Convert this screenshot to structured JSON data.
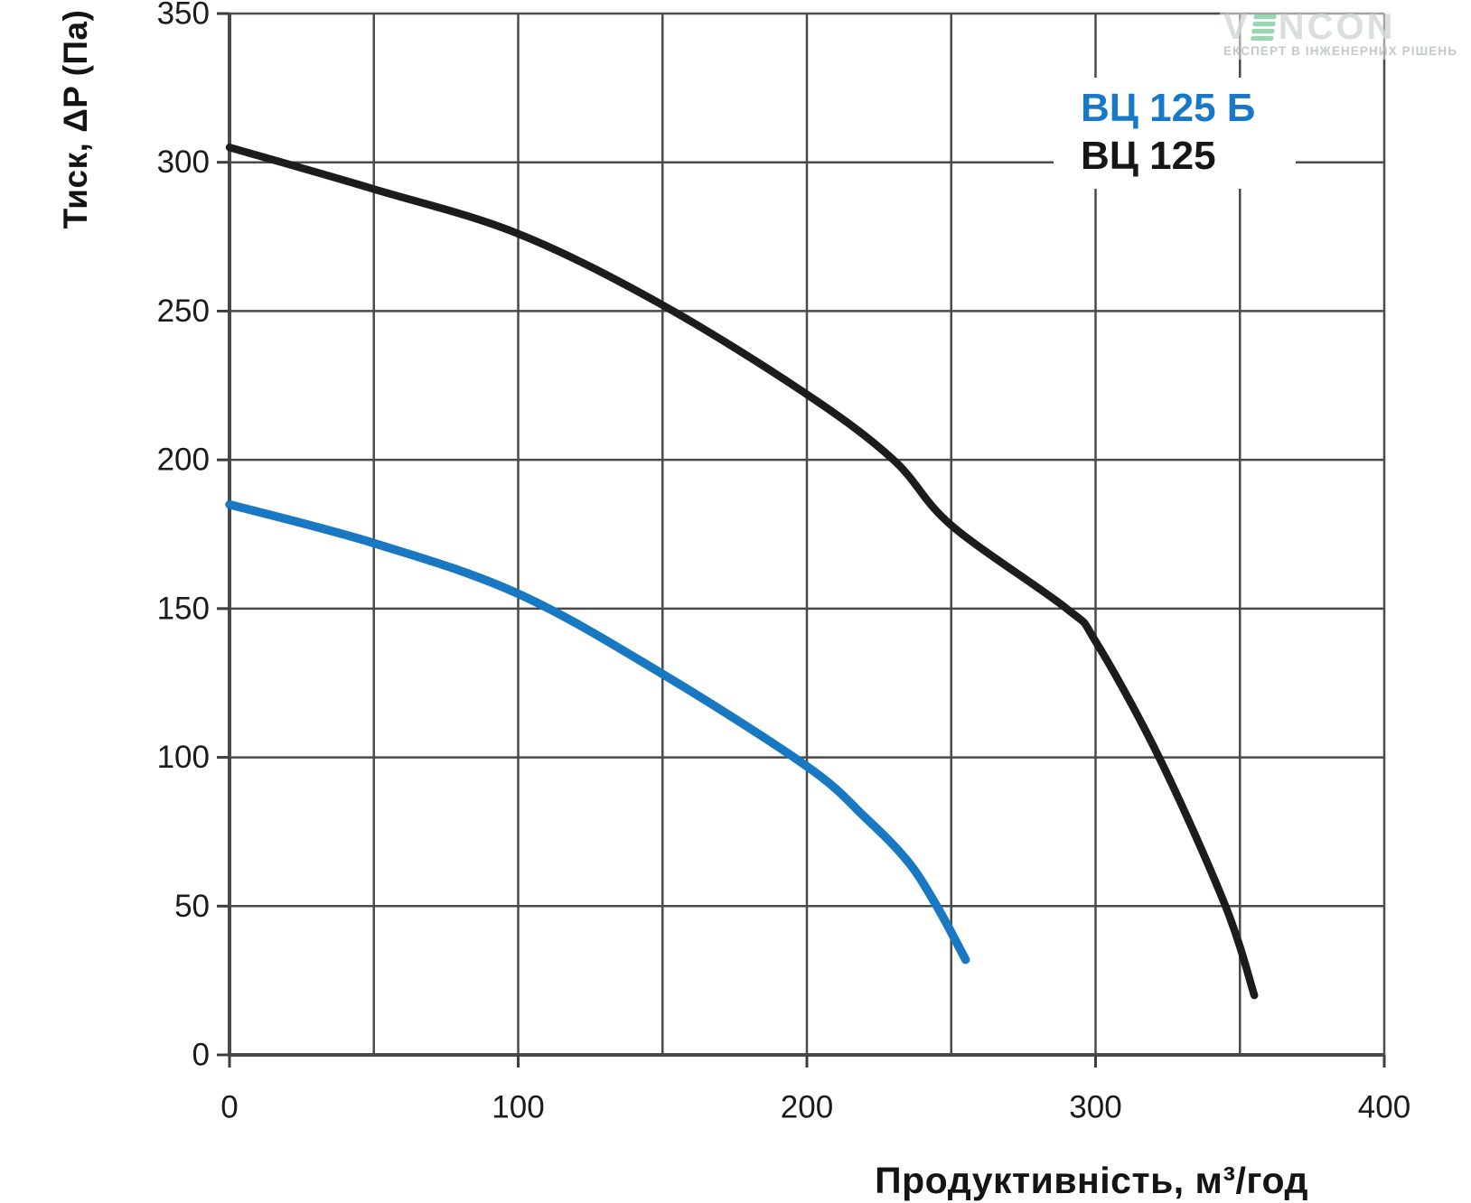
{
  "watermark": {
    "brand_prefix": "V",
    "brand_suffix": "NCON",
    "tagline": "ЕКСПЕРТ В ІНЖЕНЕРНИХ РІШЕНЬ",
    "accent_green": "#8ed3ab"
  },
  "chart_data": {
    "type": "line",
    "title": "",
    "xlabel": "Продуктивність, м³/год",
    "ylabel": "Тиск, ΔP (Па)",
    "xlim": [
      0,
      400
    ],
    "ylim": [
      0,
      350
    ],
    "x_grid_step": 50,
    "y_grid_step": 50,
    "x_ticks_labeled": [
      0,
      100,
      200,
      300,
      400
    ],
    "y_ticks_labeled": [
      0,
      50,
      100,
      150,
      200,
      250,
      300,
      350
    ],
    "grid": true,
    "legend_position": "top-right",
    "series": [
      {
        "name": "ВЦ 125 Б",
        "color": "#1878c2",
        "points": [
          [
            0,
            185
          ],
          [
            50,
            172
          ],
          [
            100,
            155
          ],
          [
            150,
            128
          ],
          [
            200,
            97
          ],
          [
            220,
            80
          ],
          [
            235,
            65
          ],
          [
            245,
            50
          ],
          [
            255,
            32
          ]
        ]
      },
      {
        "name": "ВЦ 125",
        "color": "#1c1c1c",
        "points": [
          [
            0,
            305
          ],
          [
            50,
            291
          ],
          [
            100,
            276
          ],
          [
            150,
            252
          ],
          [
            200,
            222
          ],
          [
            230,
            200
          ],
          [
            250,
            178
          ],
          [
            290,
            150
          ],
          [
            300,
            139
          ],
          [
            322,
            100
          ],
          [
            345,
            50
          ],
          [
            355,
            20
          ]
        ]
      }
    ],
    "colors": {
      "grid": "#4a4a4a",
      "axis": "#3d3d3d",
      "tick_text": "#1b1b1b",
      "legend_blue": "#1878c8",
      "legend_black": "#161616"
    }
  }
}
